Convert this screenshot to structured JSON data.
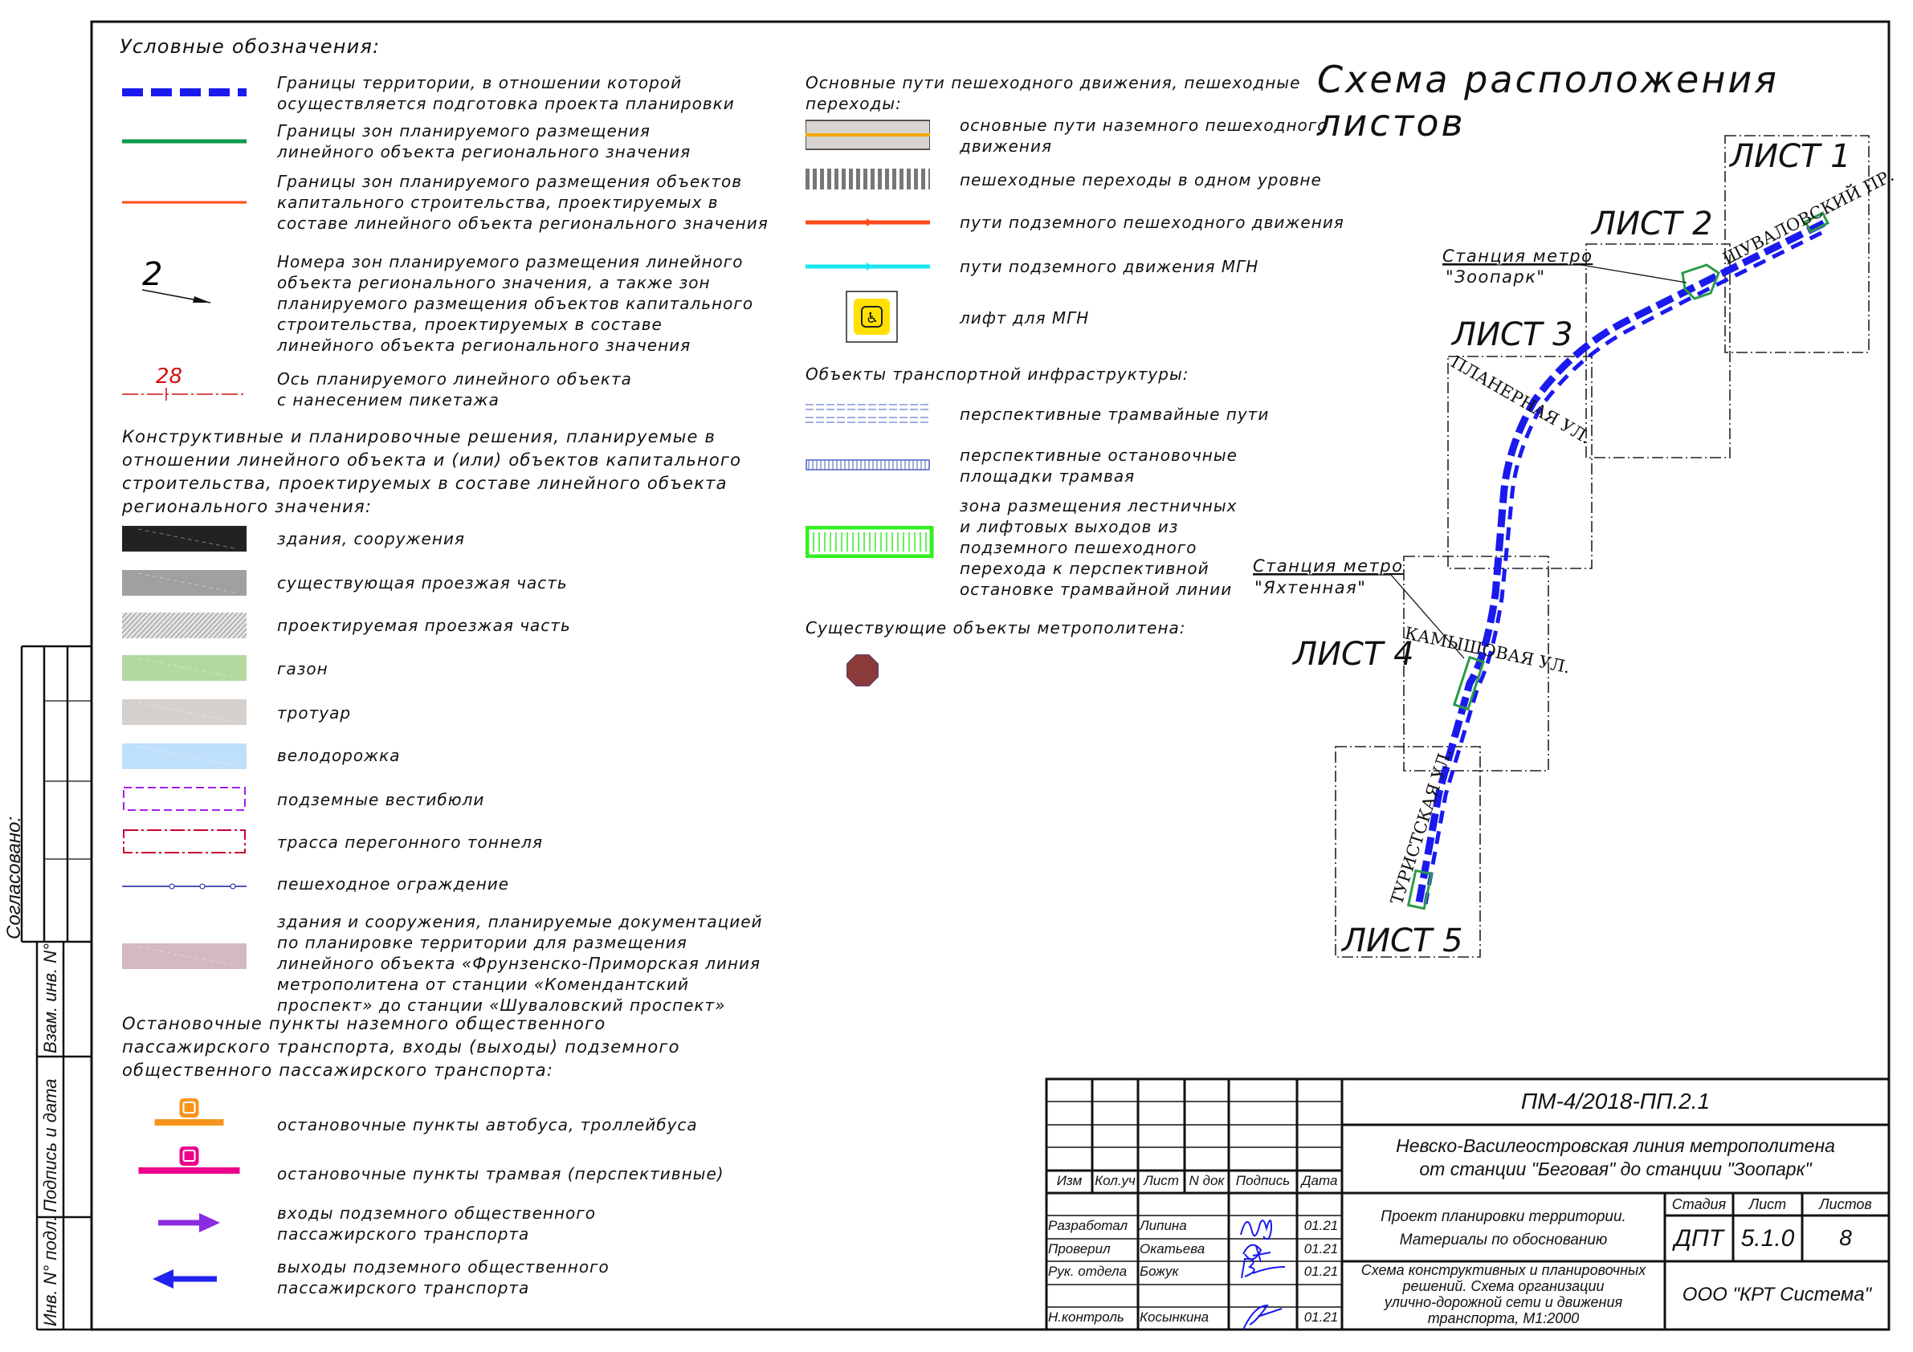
{
  "legend": {
    "title": "Условные обозначения:",
    "items": [
      {
        "symbol": "territory-boundary",
        "lines": [
          "Границы территории, в отношении которой",
          "осуществляется подготовка проекта планировки"
        ]
      },
      {
        "symbol": "zone-linear-object",
        "lines": [
          "Границы зон планируемого размещения",
          "линейного объекта регионального значения"
        ]
      },
      {
        "symbol": "zone-capital",
        "lines": [
          "Границы зон планируемого размещения объектов",
          "капитального строительства, проектируемых в",
          "составе линейного объекта регионального значения"
        ]
      },
      {
        "symbol": "zone-number",
        "label": "2",
        "lines": [
          "Номера зон планируемого размещения линейного",
          "объекта регионального значения, а также зон",
          "планируемого размещения объектов капитального",
          "строительства, проектируемых в составе",
          "линейного объекта регионального значения"
        ]
      },
      {
        "symbol": "axis-picket",
        "label": "28",
        "lines": [
          "Ось планируемого линейного объекта",
          "с нанесением пикетажа"
        ]
      }
    ],
    "section2": [
      "Конструктивные и планировочные решения, планируемые в",
      "отношении линейного объекта и (или) объектов капитального",
      "строительства, проектируемых в составе линейного объекта",
      "регионального значения:"
    ],
    "items2": [
      {
        "symbol": "buildings",
        "color": "#222222",
        "lines": [
          "здания, сооружения"
        ]
      },
      {
        "symbol": "existing-road",
        "color": "#a0a0a0",
        "lines": [
          "существующая проезжая часть"
        ]
      },
      {
        "symbol": "planned-road",
        "color": "#9a9a9a",
        "lines": [
          "проектируемая проезжая часть"
        ]
      },
      {
        "symbol": "lawn",
        "color": "#b3d9a0",
        "lines": [
          "газон"
        ]
      },
      {
        "symbol": "sidewalk",
        "color": "#d6d0cc",
        "lines": [
          "тротуар"
        ]
      },
      {
        "symbol": "bike-lane",
        "color": "#bfe0fb",
        "lines": [
          "велодорожка"
        ]
      },
      {
        "symbol": "underground-vestibule",
        "color": "#a020f0",
        "lines": [
          "подземные вестибюли"
        ]
      },
      {
        "symbol": "tunnel-route",
        "color": "#cc0033",
        "lines": [
          "трасса перегонного тоннеля"
        ]
      },
      {
        "symbol": "pedestrian-fence",
        "color": "#1a1aa0",
        "lines": [
          "пешеходное ограждение"
        ]
      },
      {
        "symbol": "planned-metro-buildings",
        "color": "#d4b8c4",
        "lines": [
          "здания и сооружения, планируемые документацией",
          "по планировке территории для размещения",
          "линейного объекта «Фрунзенско-Приморская линия",
          "метрополитена от станции «Комендантский",
          "проспект» до станции «Шуваловский проспект»"
        ]
      }
    ],
    "section3": [
      "Остановочные пункты наземного общественного",
      "пассажирского транспорта, входы (выходы) подземного",
      "общественного пассажирского транспорта:"
    ],
    "items3": [
      {
        "symbol": "bus-stop",
        "color": "#f7941d",
        "lines": [
          "остановочные пункты автобуса, троллейбуса"
        ]
      },
      {
        "symbol": "tram-stop",
        "color": "#ec008c",
        "lines": [
          "остановочные пункты трамвая (перспективные)"
        ]
      },
      {
        "symbol": "entrance-arrow",
        "color": "#8a2be2",
        "lines": [
          "входы подземного общественного",
          "пассажирского транспорта"
        ]
      },
      {
        "symbol": "exit-arrow",
        "color": "#2222ee",
        "lines": [
          "выходы подземного общественного",
          "пассажирского транспорта"
        ]
      }
    ],
    "middle": {
      "section1": [
        "Основные пути пешеходного движения, пешеходные",
        "переходы:"
      ],
      "items1": [
        {
          "symbol": "surface-pedestrian-path",
          "color": "#f5a800",
          "lines": [
            "основные пути наземного пешеходного",
            "движения"
          ]
        },
        {
          "symbol": "crosswalk",
          "color": "#777777",
          "lines": [
            "пешеходные переходы в одном уровне"
          ]
        },
        {
          "symbol": "underground-pedestrian-path",
          "color": "#ff4a1a",
          "lines": [
            "пути подземного пешеходного движения"
          ]
        },
        {
          "symbol": "underground-mgn-path",
          "color": "#19e6f0",
          "lines": [
            "пути подземного движения МГН"
          ]
        },
        {
          "symbol": "mgn-elevator",
          "color": "#ffe000",
          "lines": [
            "лифт для МГН"
          ]
        }
      ],
      "section2": [
        "Объекты транспортной инфраструктуры:"
      ],
      "items2": [
        {
          "symbol": "tram-tracks",
          "color": "#6a7fd0",
          "lines": [
            "перспективные трамвайные пути"
          ]
        },
        {
          "symbol": "tram-platforms",
          "color": "#4a5fc0",
          "lines": [
            "перспективные остановочные",
            "площадки трамвая"
          ]
        },
        {
          "symbol": "exit-zone",
          "color": "#33ee22",
          "lines": [
            "зона размещения лестничных",
            "и лифтовых выходов из",
            "подземного пешеходного",
            "перехода к перспективной",
            "остановке трамвайной линии"
          ]
        }
      ],
      "section3": [
        "Существующие объекты метрополитена:"
      ],
      "metro_color": "#8b3a3a"
    }
  },
  "scheme": {
    "title": "Схема расположения листов",
    "sheets": [
      "ЛИСТ 1",
      "ЛИСТ 2",
      "ЛИСТ 3",
      "ЛИСТ 4",
      "ЛИСТ 5"
    ],
    "streets": [
      "ШУВАЛОВСКИЙ ПР.",
      "ПЛАНЕРНАЯ УЛ.",
      "КАМЫШОВАЯ УЛ.",
      "ТУРИСТСКАЯ УЛ."
    ],
    "stations": [
      {
        "label": "Станция метро",
        "name": "\"Зоопарк\""
      },
      {
        "label": "Станция метро",
        "name": "\"Яхтенная\""
      }
    ],
    "route_color": "#1a1aee",
    "station_color": "#2a9a4a"
  },
  "side_stamp": {
    "agreed": "Согласовано:",
    "fields": [
      "Взам. инв. N°",
      "Подпись и дата",
      "Инв. N° подл."
    ]
  },
  "title_block": {
    "code": "ПМ-4/2018-ПП.2.1",
    "project_title": [
      "Невско-Василеостровская линия метрополитена",
      "от станции \"Беговая\" до станции \"Зоопарк\""
    ],
    "headers": [
      "Изм",
      "Кол.уч",
      "Лист",
      "N док",
      "Подпись",
      "Дата"
    ],
    "signers": [
      {
        "role": "Разработал",
        "name": "Липина",
        "date": "01.21"
      },
      {
        "role": "Проверил",
        "name": "Окатьева",
        "date": "01.21"
      },
      {
        "role": "Рук. отдела",
        "name": "Божук",
        "date": "01.21"
      },
      {
        "role": "Н.контроль",
        "name": "Косынкина",
        "date": "01.21"
      }
    ],
    "doc_name": [
      "Проект планировки территории.",
      "Материалы по обоснованию"
    ],
    "stage_header": "Стадия",
    "sheet_header": "Лист",
    "sheets_header": "Листов",
    "stage": "ДПТ",
    "sheet": "5.1.0",
    "sheets": "8",
    "drawing_name": [
      "Схема конструктивных и планировочных",
      "решений. Схема организации",
      "улично-дорожной сети и движения",
      "транспорта, М1:2000"
    ],
    "company": "ООО \"КРТ Система\"",
    "signature_color": "#1a1aee"
  }
}
